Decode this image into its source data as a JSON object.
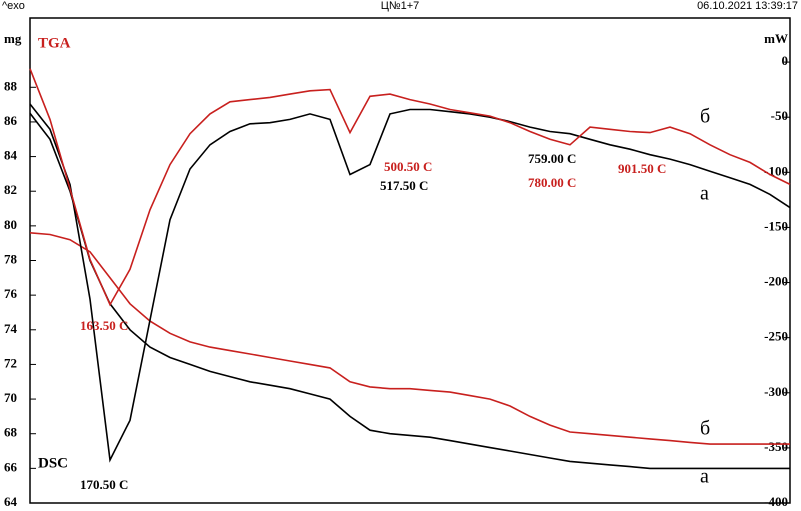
{
  "chart_data": {
    "type": "line",
    "header": {
      "left": "^exo",
      "center": "Ц№1+7",
      "right": "06.10.2021 13:39:17"
    },
    "ylabel": "mg",
    "y2label": "mW",
    "tga_label": "TGA",
    "dsc_label": "DSC",
    "annotations": [
      {
        "text": "500.50 C",
        "color": "#c8201e"
      },
      {
        "text": "517.50 C",
        "color": "#000000"
      },
      {
        "text": "759.00 C",
        "color": "#000000"
      },
      {
        "text": "780.00 C",
        "color": "#c8201e"
      },
      {
        "text": "901.50 C",
        "color": "#c8201e"
      },
      {
        "text": "163.50 C",
        "color": "#c8201e"
      },
      {
        "text": "170.50 C",
        "color": "#000000"
      }
    ],
    "categories": [
      null,
      null,
      null,
      null,
      null,
      null,
      null,
      null,
      null,
      null,
      null,
      null,
      null,
      null,
      null,
      null,
      null,
      null,
      null,
      null,
      null,
      null,
      null,
      null,
      null,
      null,
      null,
      null,
      null,
      null,
      null,
      null,
      null,
      null,
      null,
      null,
      null,
      null,
      null
    ],
    "ylim": [
      64,
      92
    ],
    "yticks": [
      64,
      66,
      68,
      70,
      72,
      74,
      76,
      78,
      80,
      82,
      84,
      86,
      88
    ],
    "y2lim": [
      -400,
      40
    ],
    "y2ticks": [
      0,
      -50,
      -100,
      -150,
      -200,
      -250,
      -300,
      -350,
      -400
    ],
    "series": [
      {
        "name": "а",
        "color": "#000000",
        "values": [
          86.5,
          85,
          82,
          78,
          75.5,
          74,
          73,
          72.4,
          72,
          71.6,
          71.3,
          71,
          70.8,
          70.6,
          70.3,
          70,
          69,
          68.2,
          68,
          67.9,
          67.8,
          67.6,
          67.4,
          67.2,
          67,
          66.8,
          66.6,
          66.4,
          66.3,
          66.2,
          66.1,
          66,
          66,
          66,
          66,
          66,
          66,
          66,
          66
        ]
      },
      {
        "name": "б",
        "color": "#c8201e",
        "values": [
          79.6,
          79.5,
          79.2,
          78.5,
          77,
          75.5,
          74.5,
          73.8,
          73.3,
          73,
          72.8,
          72.6,
          72.4,
          72.2,
          72,
          71.8,
          71,
          70.7,
          70.6,
          70.6,
          70.5,
          70.4,
          70.2,
          70,
          69.6,
          69,
          68.5,
          68.1,
          68,
          67.9,
          67.8,
          67.7,
          67.6,
          67.5,
          67.4,
          67.4,
          67.4,
          67.4,
          67.4
        ]
      },
      {
        "name": "а",
        "color": "#000000",
        "axis": "y2",
        "values": [
          -38,
          -61,
          -111,
          -215,
          -361,
          -325,
          -234,
          -143,
          -97,
          -75,
          -63,
          -56,
          -55,
          -52,
          -47,
          -52,
          -102,
          -93,
          -47,
          -43,
          -43,
          -45,
          -47,
          -50,
          -54,
          -59,
          -63,
          -65,
          -70,
          -75,
          -79,
          -84,
          -88,
          -93,
          -99,
          -105,
          -111,
          -120,
          -132
        ]
      },
      {
        "name": "б",
        "color": "#c8201e",
        "axis": "y2",
        "values": [
          -6,
          -52,
          -115,
          -179,
          -220,
          -188,
          -134,
          -93,
          -65,
          -47,
          -36,
          -34,
          -32,
          -29,
          -26,
          -25,
          -64,
          -31,
          -29,
          -34,
          -38,
          -43,
          -46,
          -49,
          -55,
          -63,
          -70,
          -75,
          -59,
          -61,
          -63,
          -64,
          -59,
          -65,
          -75,
          -84,
          -91,
          -102,
          -111
        ]
      }
    ]
  }
}
